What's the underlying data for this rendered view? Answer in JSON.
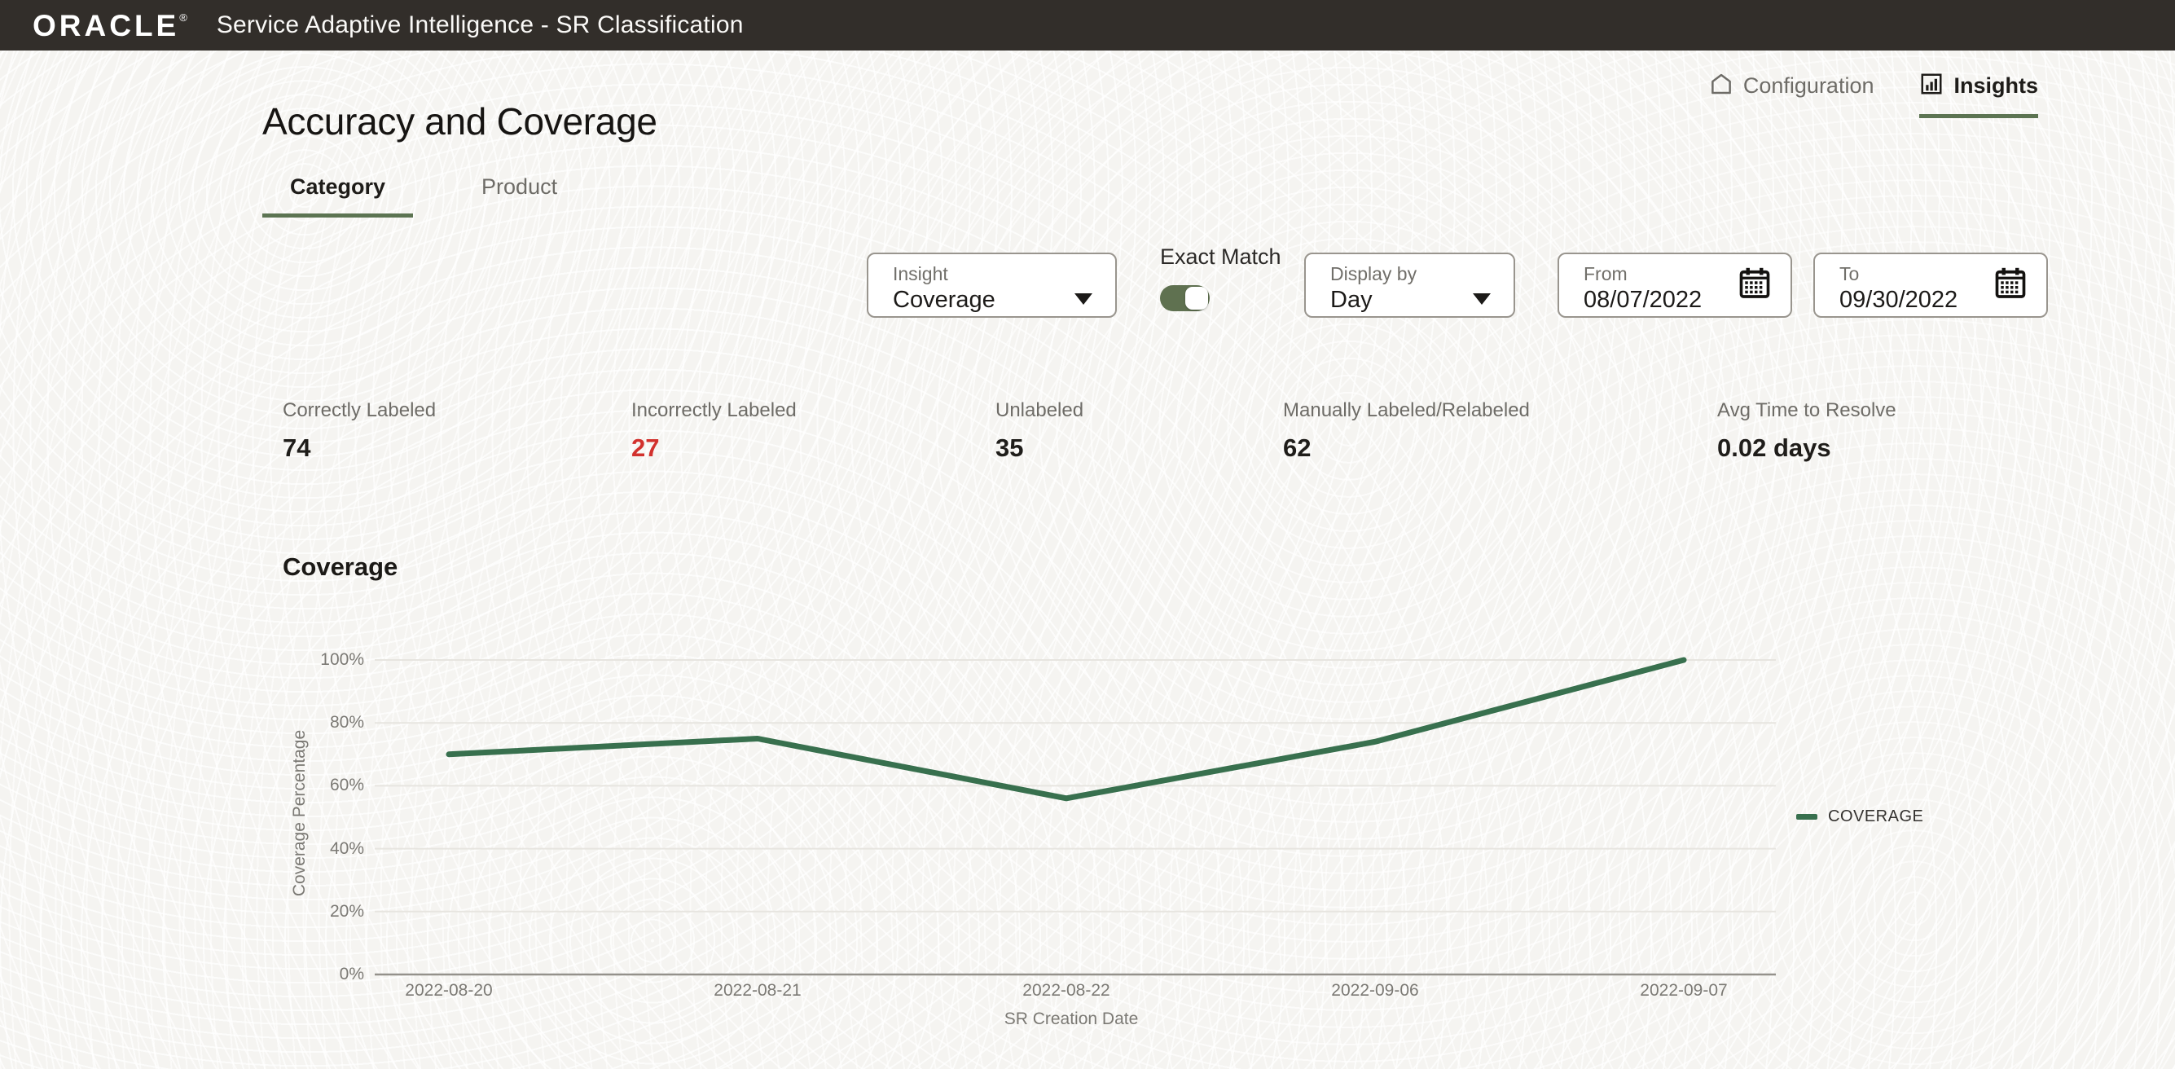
{
  "header": {
    "logo": "ORACLE",
    "logo_mark": "®",
    "app_title": "Service Adaptive Intelligence - SR Classification"
  },
  "nav": {
    "configuration": "Configuration",
    "insights": "Insights"
  },
  "page": {
    "title": "Accuracy and Coverage"
  },
  "tabs": [
    {
      "label": "Category",
      "active": true
    },
    {
      "label": "Product",
      "active": false
    }
  ],
  "controls": {
    "insight": {
      "label": "Insight",
      "value": "Coverage"
    },
    "exact_match": {
      "label": "Exact Match",
      "on": true
    },
    "display_by": {
      "label": "Display by",
      "value": "Day"
    },
    "from_date": {
      "label": "From",
      "value": "08/07/2022"
    },
    "to_date": {
      "label": "To",
      "value": "09/30/2022"
    }
  },
  "metrics": [
    {
      "label": "Correctly Labeled",
      "value": "74",
      "color": "#1f1d1a"
    },
    {
      "label": "Incorrectly Labeled",
      "value": "27",
      "color": "#d2312d"
    },
    {
      "label": "Unlabeled",
      "value": "35",
      "color": "#1f1d1a"
    },
    {
      "label": "Manually Labeled/Relabeled",
      "value": "62",
      "color": "#1f1d1a"
    },
    {
      "label": "Avg Time to Resolve",
      "value": "0.02 days",
      "color": "#1f1d1a"
    }
  ],
  "section": {
    "title": "Coverage"
  },
  "chart_data": {
    "type": "line",
    "title": "Coverage",
    "x": [
      "2022-08-20",
      "2022-08-21",
      "2022-08-22",
      "2022-09-06",
      "2022-09-07"
    ],
    "series": [
      {
        "name": "COVERAGE",
        "values": [
          70,
          75,
          56,
          74,
          100
        ],
        "color": "#38704e"
      }
    ],
    "xlabel": "SR Creation Date",
    "ylabel": "Coverage Percentage",
    "ylim": [
      0,
      100
    ],
    "yticks": [
      0,
      20,
      40,
      60,
      80,
      100
    ],
    "ytick_format": "{v}%",
    "grid": true,
    "legend_position": "right"
  },
  "colors": {
    "topbar": "#322e2a",
    "accent_green": "#5c7452",
    "line_green": "#38704e",
    "status_red": "#d2312d"
  }
}
